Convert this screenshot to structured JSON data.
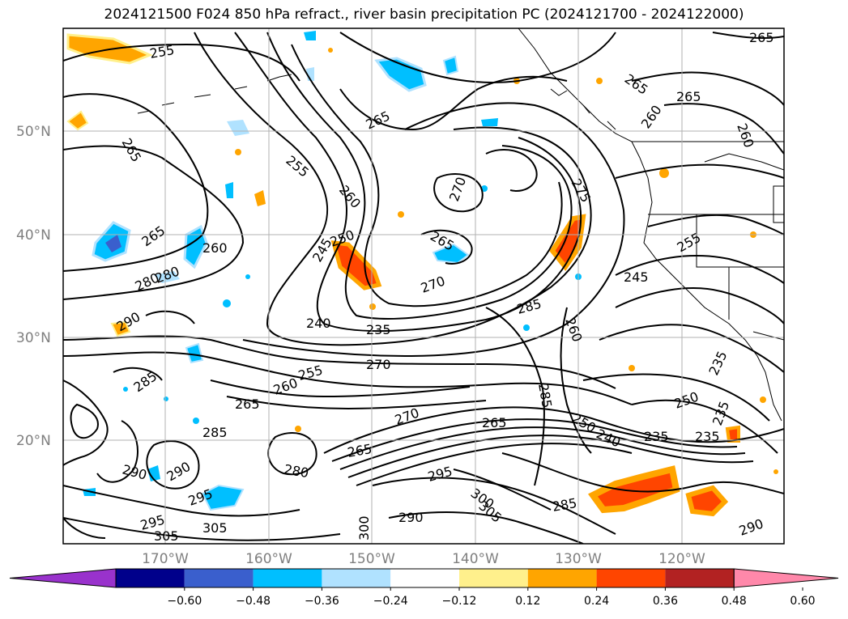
{
  "title": "2024121500 F024 850 hPa refract., river basin precipitation PC (2024121700 - 2024122000)",
  "lat_labels": [
    "50°N",
    "40°N",
    "30°N",
    "20°N"
  ],
  "lon_labels": [
    "170°W",
    "160°W",
    "150°W",
    "140°W",
    "130°W",
    "120°W"
  ],
  "contour_labels": [
    "265",
    "255",
    "265",
    "265",
    "255",
    "260",
    "270",
    "275",
    "265",
    "265",
    "260",
    "260",
    "260",
    "265",
    "280",
    "270",
    "250",
    "245",
    "240",
    "235",
    "265",
    "255",
    "245",
    "285",
    "260",
    "235",
    "270",
    "285",
    "265",
    "260",
    "255",
    "250",
    "285",
    "270",
    "265",
    "250",
    "240",
    "235",
    "235",
    "235",
    "285",
    "290",
    "290",
    "295",
    "300",
    "290",
    "305",
    "280",
    "265",
    "295",
    "285",
    "300",
    "305",
    "280",
    "290",
    "290",
    "295",
    "305"
  ],
  "colorbar": {
    "ticks": [
      "−0.60",
      "−0.48",
      "−0.36",
      "−0.24",
      "−0.12",
      "0.12",
      "0.24",
      "0.36",
      "0.48",
      "0.60"
    ],
    "colors": [
      "#9932cc",
      "#00008b",
      "#3a5fcd",
      "#00bfff",
      "#b0e2ff",
      "#ffffff",
      "#fff08c",
      "#ffa500",
      "#ff4500",
      "#b22222",
      "#ff88aa"
    ]
  }
}
